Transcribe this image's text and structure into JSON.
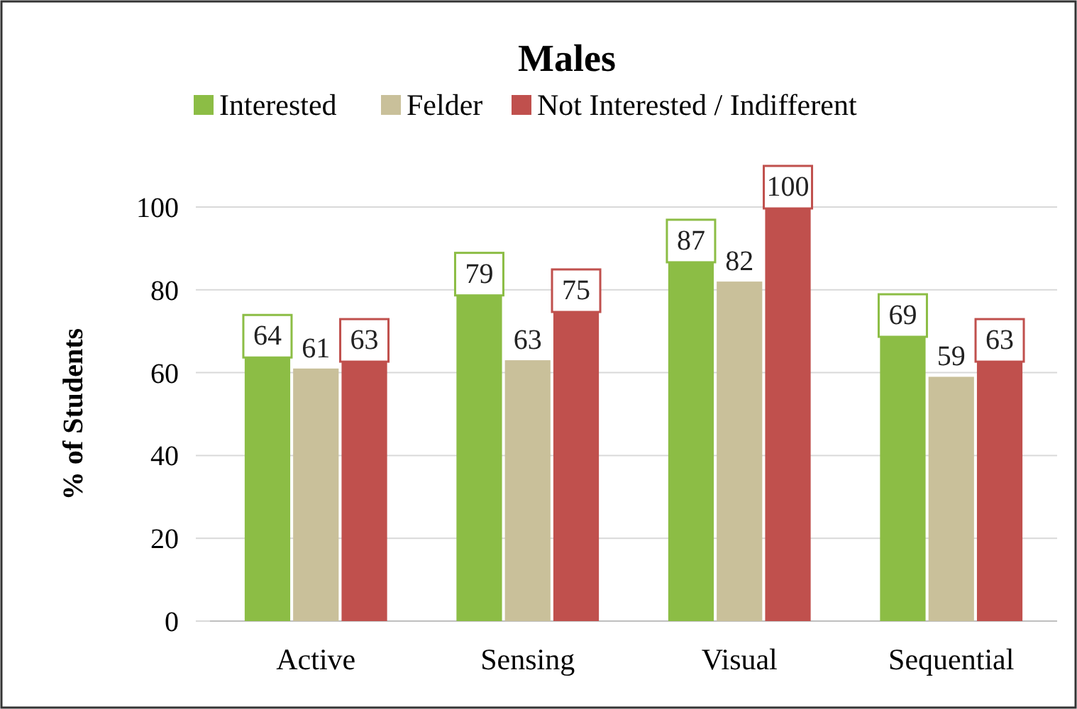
{
  "chart_data": {
    "type": "bar",
    "title": "Males",
    "ylabel": "% of Students",
    "categories": [
      "Active",
      "Sensing",
      "Visual",
      "Sequential"
    ],
    "series": [
      {
        "name": "Interested",
        "color": "#8cbd45",
        "values": [
          64,
          79,
          87,
          69
        ]
      },
      {
        "name": "Felder",
        "color": "#c9c09a",
        "values": [
          61,
          63,
          82,
          59
        ]
      },
      {
        "name": "Not Interested / Indifferent",
        "color": "#c0504d",
        "values": [
          63,
          75,
          100,
          63
        ]
      }
    ],
    "ylim": [
      0,
      100
    ],
    "yticks": [
      0,
      20,
      40,
      60,
      80,
      100
    ],
    "grid": "y",
    "legend": "top",
    "data_labels": true
  }
}
